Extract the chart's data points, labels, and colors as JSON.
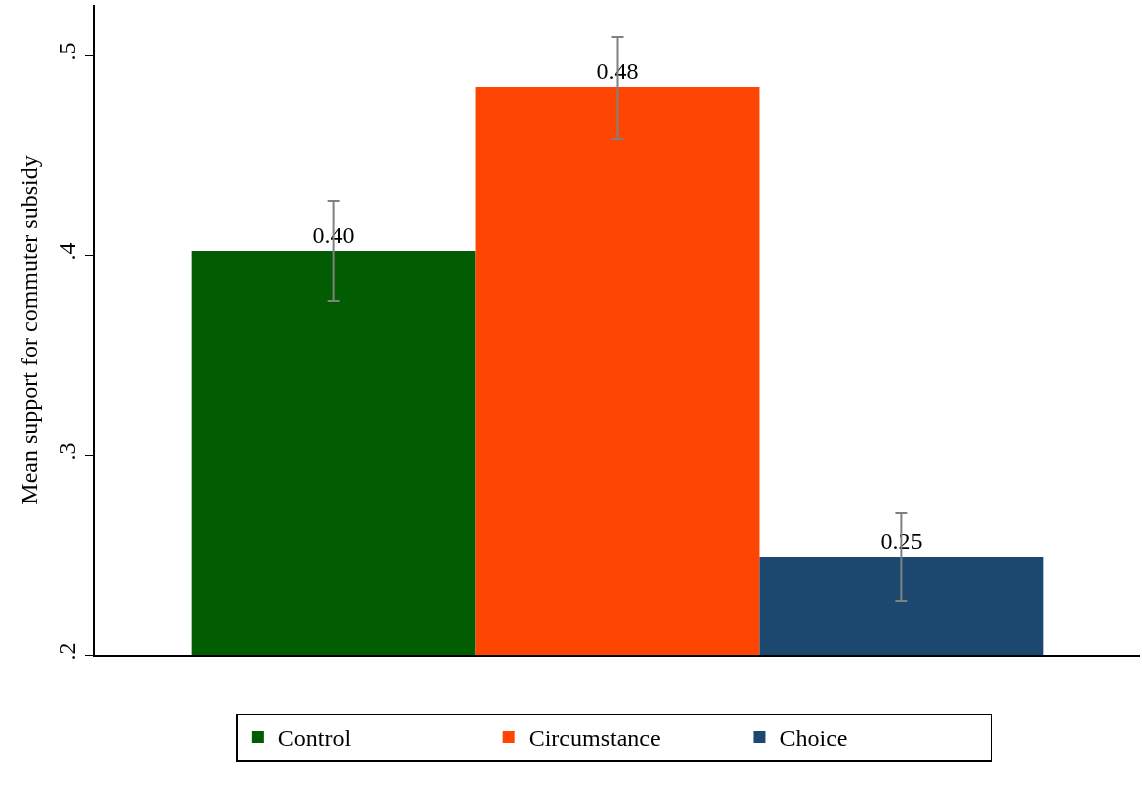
{
  "chart_data": {
    "type": "bar",
    "ylabel": "Mean support for commuter subsidy",
    "categories": [
      null
    ],
    "series": [
      {
        "name": "Control",
        "color": "#025c02",
        "values": [
          0.402
        ],
        "errors": [
          [
            0.377,
            0.427
          ]
        ],
        "value_labels": [
          "0.40"
        ]
      },
      {
        "name": "Circumstance",
        "color": "#fe4602",
        "values": [
          0.484
        ],
        "errors": [
          [
            0.458,
            0.509
          ]
        ],
        "value_labels": [
          "0.48"
        ]
      },
      {
        "name": "Choice",
        "color": "#1c476f",
        "values": [
          0.249
        ],
        "errors": [
          [
            0.227,
            0.271
          ]
        ],
        "value_labels": [
          "0.25"
        ]
      }
    ],
    "ylim": [
      0.2,
      0.525
    ],
    "yticks": [
      {
        "value": 0.2,
        "label": ".2"
      },
      {
        "value": 0.3,
        "label": ".3"
      },
      {
        "value": 0.4,
        "label": ".4"
      },
      {
        "value": 0.5,
        "label": ".5"
      }
    ],
    "grid": false,
    "legend": "bottom"
  }
}
